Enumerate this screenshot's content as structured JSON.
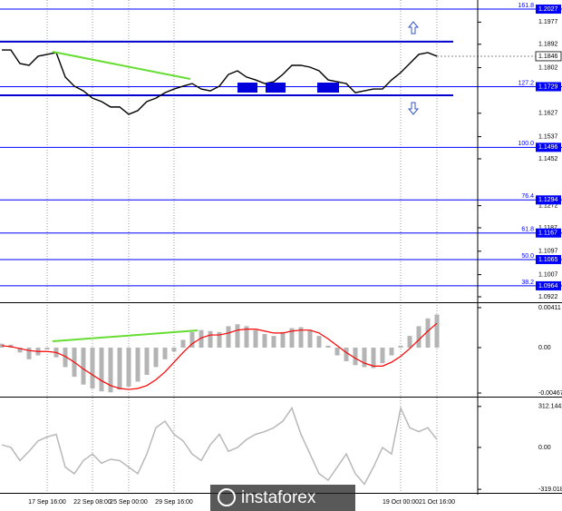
{
  "watermark": "instaforex",
  "chart_data": [
    {
      "type": "line",
      "color": "#000000",
      "ylim": [
        1.0901,
        1.2062
      ],
      "yticks": [
        1.1977,
        1.1892,
        1.1802,
        1.1627,
        1.1537,
        1.1452,
        1.1272,
        1.1187,
        1.1097,
        1.1007,
        1.0922
      ],
      "values": [
        1.187,
        1.187,
        1.1818,
        1.1811,
        1.1846,
        1.1853,
        1.186,
        1.1766,
        1.1731,
        1.1713,
        1.1685,
        1.1672,
        1.1651,
        1.1651,
        1.1623,
        1.1637,
        1.1672,
        1.1685,
        1.1706,
        1.172,
        1.1731,
        1.1741,
        1.172,
        1.1713,
        1.1731,
        1.1776,
        1.179,
        1.1766,
        1.1755,
        1.1741,
        1.1748,
        1.1776,
        1.1811,
        1.1811,
        1.1804,
        1.179,
        1.1755,
        1.1748,
        1.1741,
        1.1706,
        1.1713,
        1.172,
        1.172,
        1.1755,
        1.1783,
        1.1818,
        1.1853,
        1.186,
        1.1846
      ],
      "level_color": "#0000ff",
      "levels": [
        {
          "label": "161.8",
          "value": 1.2027
        },
        {
          "label": "127.2",
          "value": 1.1729
        },
        {
          "label": "100.0",
          "value": 1.1496
        },
        {
          "label": "76.4",
          "value": 1.1294
        },
        {
          "label": "61.8",
          "value": 1.1167
        },
        {
          "label": "50.0",
          "value": 1.1065
        },
        {
          "label": "38.2",
          "value": 1.0964
        }
      ],
      "channel_color": "#0000cc",
      "channel": [
        1.1902,
        1.1696
      ],
      "current": 1.1846
    },
    {
      "type": "macd",
      "ylim": [
        -0.00504,
        0.00457
      ],
      "yticks": [
        0.00411,
        {
          "value": 0,
          "label": "0.00"
        },
        -0.00467
      ],
      "series": [
        {
          "color": "#b4b4b4",
          "values": [
            0.0004,
            0.0003,
            -0.0005,
            -0.0012,
            -0.0008,
            -0.0002,
            -0.001,
            -0.002,
            -0.003,
            -0.0038,
            -0.0042,
            -0.0045,
            -0.0046,
            -0.0043,
            -0.004,
            -0.0035,
            -0.0028,
            -0.002,
            -0.0012,
            -0.0004,
            0.0008,
            0.0016,
            0.0018,
            0.0017,
            0.0016,
            0.0022,
            0.0024,
            0.0022,
            0.0018,
            0.0014,
            0.0012,
            0.0016,
            0.002,
            0.0021,
            0.0018,
            0.0012,
            0.0002,
            -0.0008,
            -0.0014,
            -0.0018,
            -0.002,
            -0.0021,
            -0.0016,
            -0.0008,
            0.0002,
            0.0012,
            0.0022,
            0.003,
            0.0034
          ]
        },
        {
          "color": "#ff0000",
          "values": [
            0.0002,
            0.0001,
            -0.0001,
            -0.0003,
            -0.0004,
            -0.0004,
            -0.0005,
            -0.0009,
            -0.0015,
            -0.0022,
            -0.0028,
            -0.0034,
            -0.0039,
            -0.0042,
            -0.0043,
            -0.0042,
            -0.0039,
            -0.0033,
            -0.0025,
            -0.0015,
            -0.0005,
            0.0004,
            0.001,
            0.0013,
            0.0013,
            0.0015,
            0.0018,
            0.0019,
            0.0019,
            0.0017,
            0.0015,
            0.0015,
            0.0017,
            0.0018,
            0.0018,
            0.0015,
            0.0009,
            0.0002,
            -0.0005,
            -0.0011,
            -0.0016,
            -0.0019,
            -0.0019,
            -0.0015,
            -0.0009,
            -0.0001,
            0.0008,
            0.0017,
            0.0025
          ]
        }
      ]
    },
    {
      "type": "line",
      "color": "#b8b8b8",
      "ylim": [
        -346,
        380
      ],
      "yticks": [
        312.1442,
        {
          "value": 0,
          "label": "0.00"
        },
        -319.0181
      ],
      "values": [
        20,
        0,
        -100,
        -30,
        50,
        80,
        100,
        -150,
        -200,
        -100,
        -50,
        -120,
        -90,
        -100,
        -150,
        -200,
        -50,
        150,
        200,
        100,
        50,
        -50,
        -100,
        20,
        100,
        -30,
        0,
        60,
        100,
        120,
        150,
        200,
        300,
        100,
        -50,
        -200,
        -250,
        -150,
        -50,
        -200,
        -280,
        -150,
        0,
        -50,
        300,
        150,
        120,
        150,
        60
      ],
      "categories": [
        null,
        null,
        null,
        null,
        null,
        "17 Sep 16:00",
        null,
        null,
        null,
        null,
        "22 Sep 08:00",
        null,
        null,
        null,
        "25 Sep 00:00",
        null,
        null,
        null,
        null,
        "29 Sep 16:00",
        null,
        null,
        null,
        null,
        null,
        null,
        null,
        null,
        null,
        null,
        null,
        null,
        null,
        null,
        null,
        null,
        null,
        null,
        null,
        null,
        null,
        null,
        null,
        null,
        "19 Oct 00:00",
        null,
        null,
        null,
        "21 Oct 16:00"
      ]
    }
  ]
}
